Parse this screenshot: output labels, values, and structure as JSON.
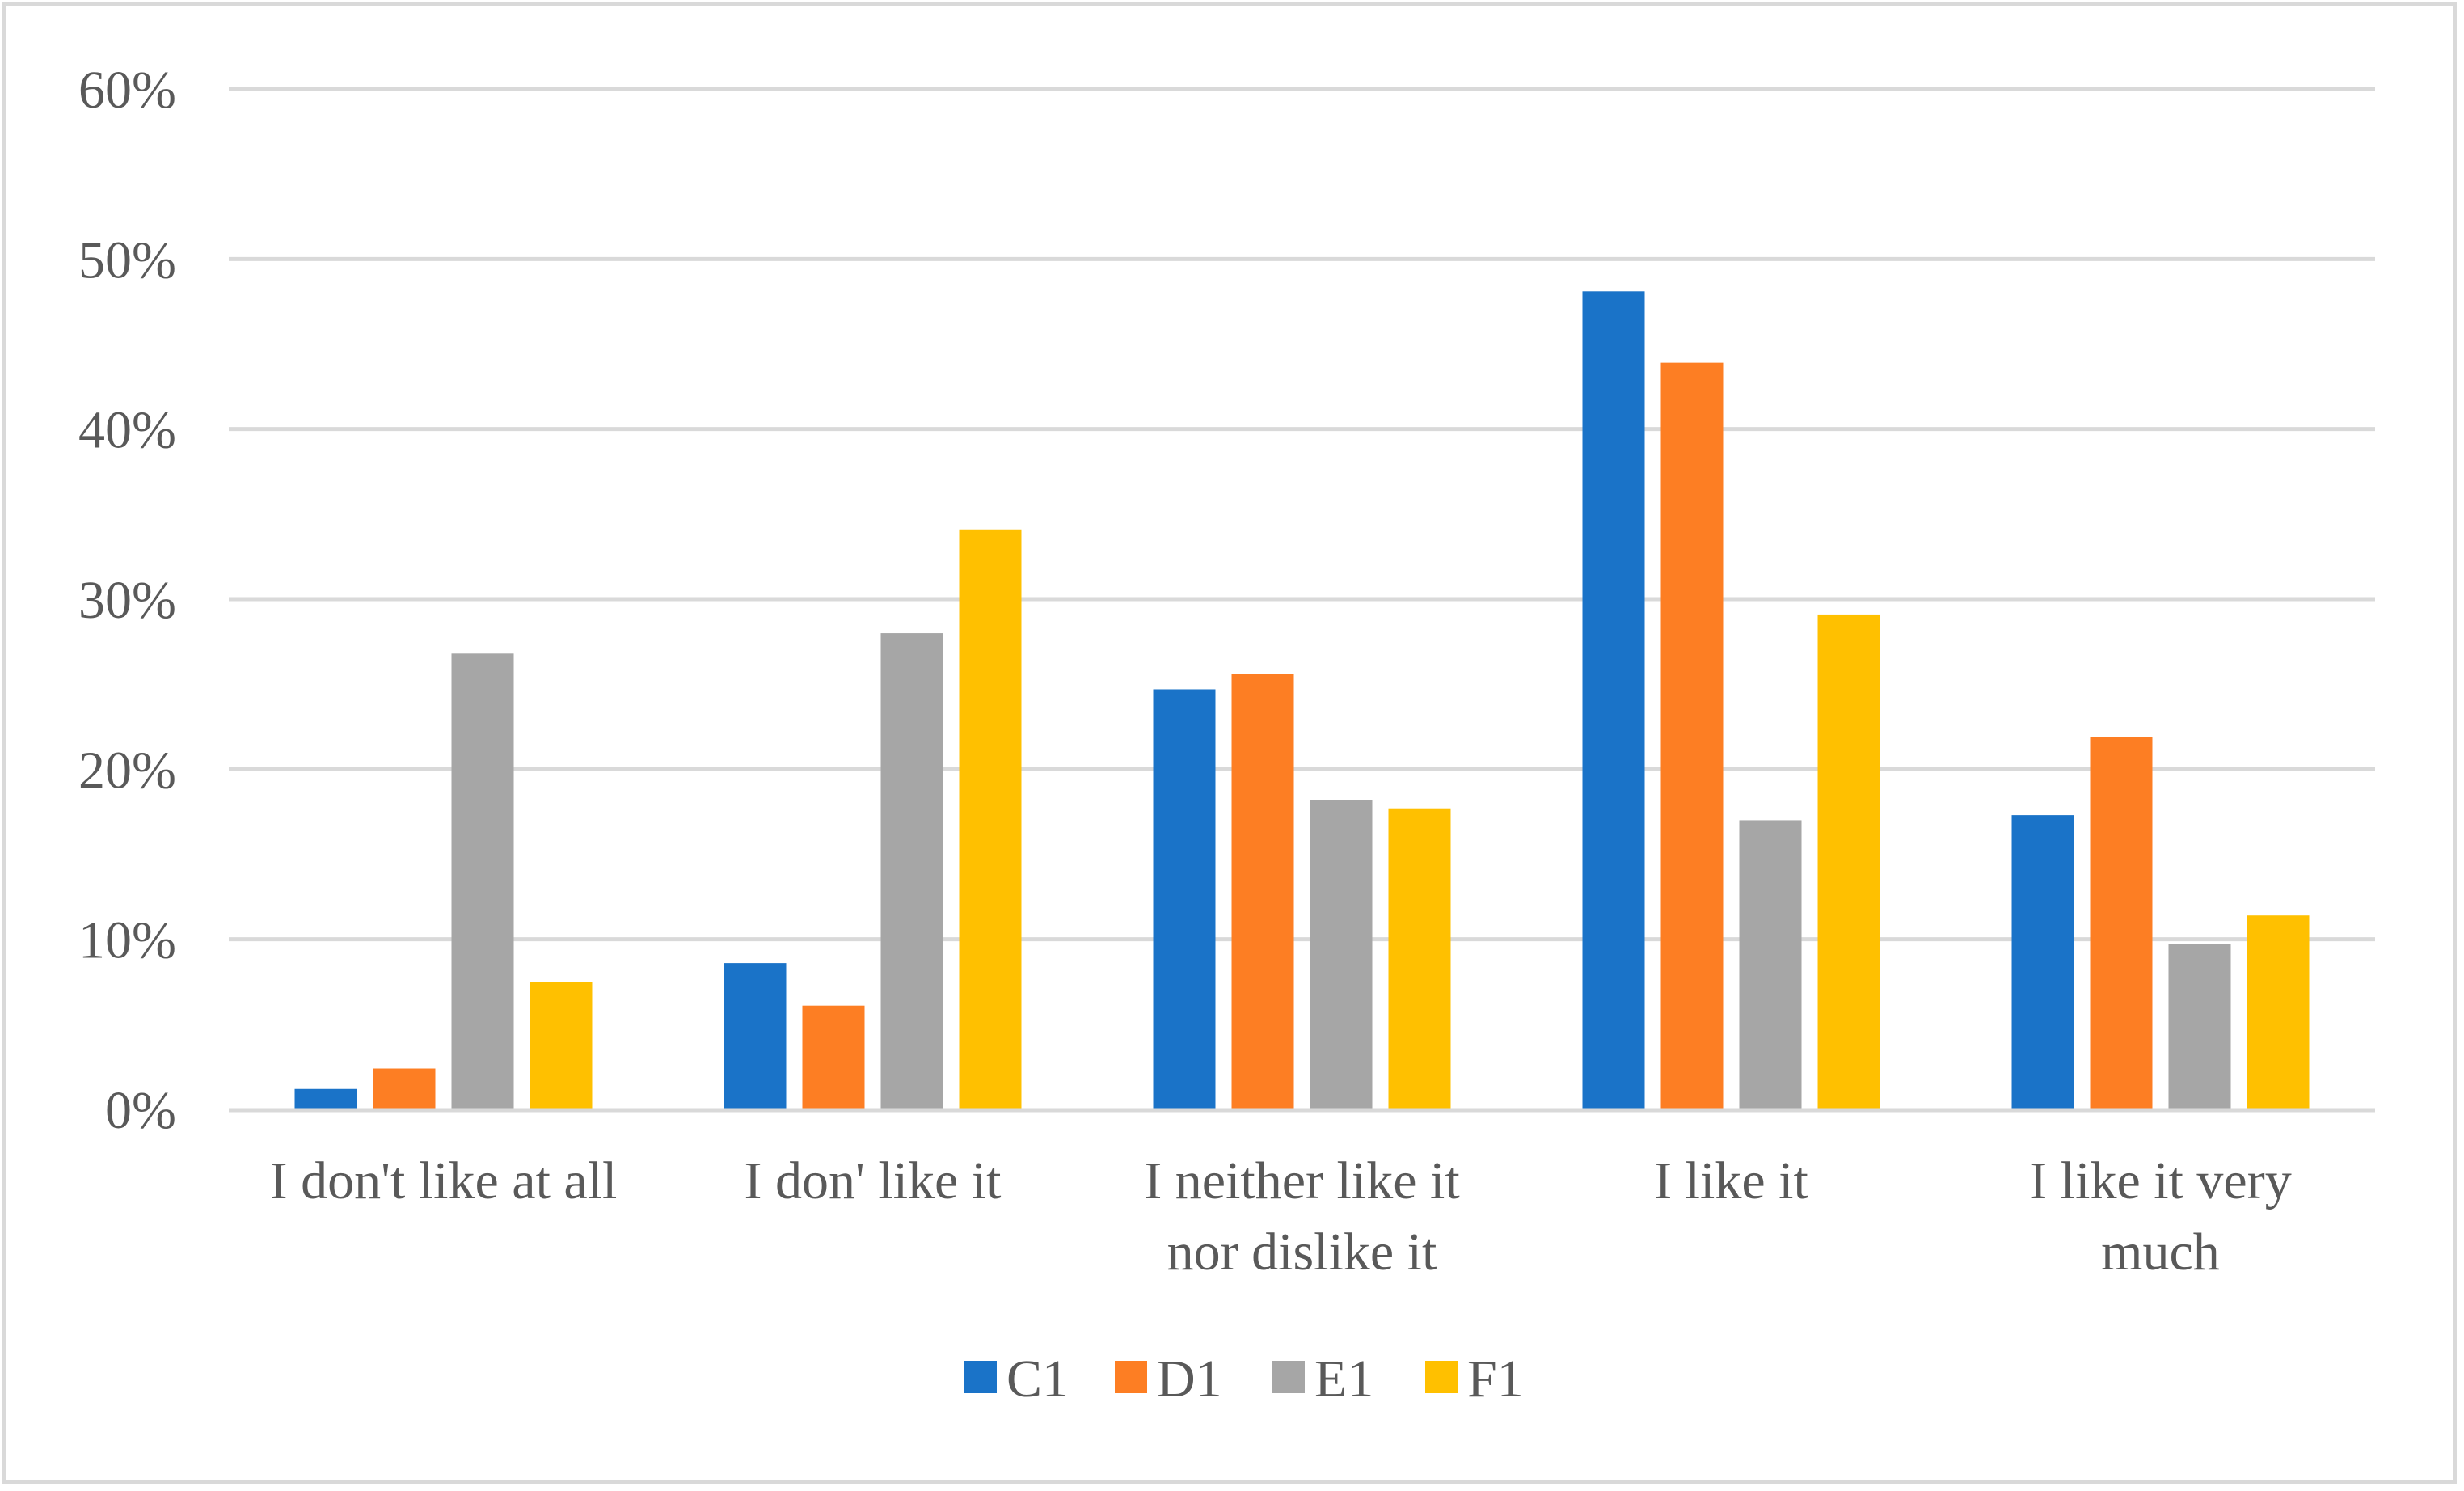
{
  "chart_data": {
    "type": "bar",
    "categories": [
      [
        "I don't like at all"
      ],
      [
        "I don' like it"
      ],
      [
        "I neither like it",
        "nor dislike it"
      ],
      [
        "I like it"
      ],
      [
        "I like it very",
        "much"
      ]
    ],
    "series": [
      {
        "name": "C1",
        "color": "#1a73c8",
        "values": [
          1.2,
          8.6,
          24.7,
          48.1,
          17.3
        ]
      },
      {
        "name": "D1",
        "color": "#fd7e23",
        "values": [
          2.4,
          6.1,
          25.6,
          43.9,
          21.9
        ]
      },
      {
        "name": "E1",
        "color": "#a6a6a6",
        "values": [
          26.8,
          28.0,
          18.2,
          17.0,
          9.7
        ]
      },
      {
        "name": "F1",
        "color": "#ffc000",
        "values": [
          7.5,
          34.1,
          17.7,
          29.1,
          11.4
        ]
      }
    ],
    "yticks": [
      "0%",
      "10%",
      "20%",
      "30%",
      "40%",
      "50%",
      "60%"
    ],
    "ylim": [
      0,
      60
    ],
    "grid": true,
    "legend_position": "bottom",
    "title": "",
    "xlabel": "",
    "ylabel": ""
  }
}
